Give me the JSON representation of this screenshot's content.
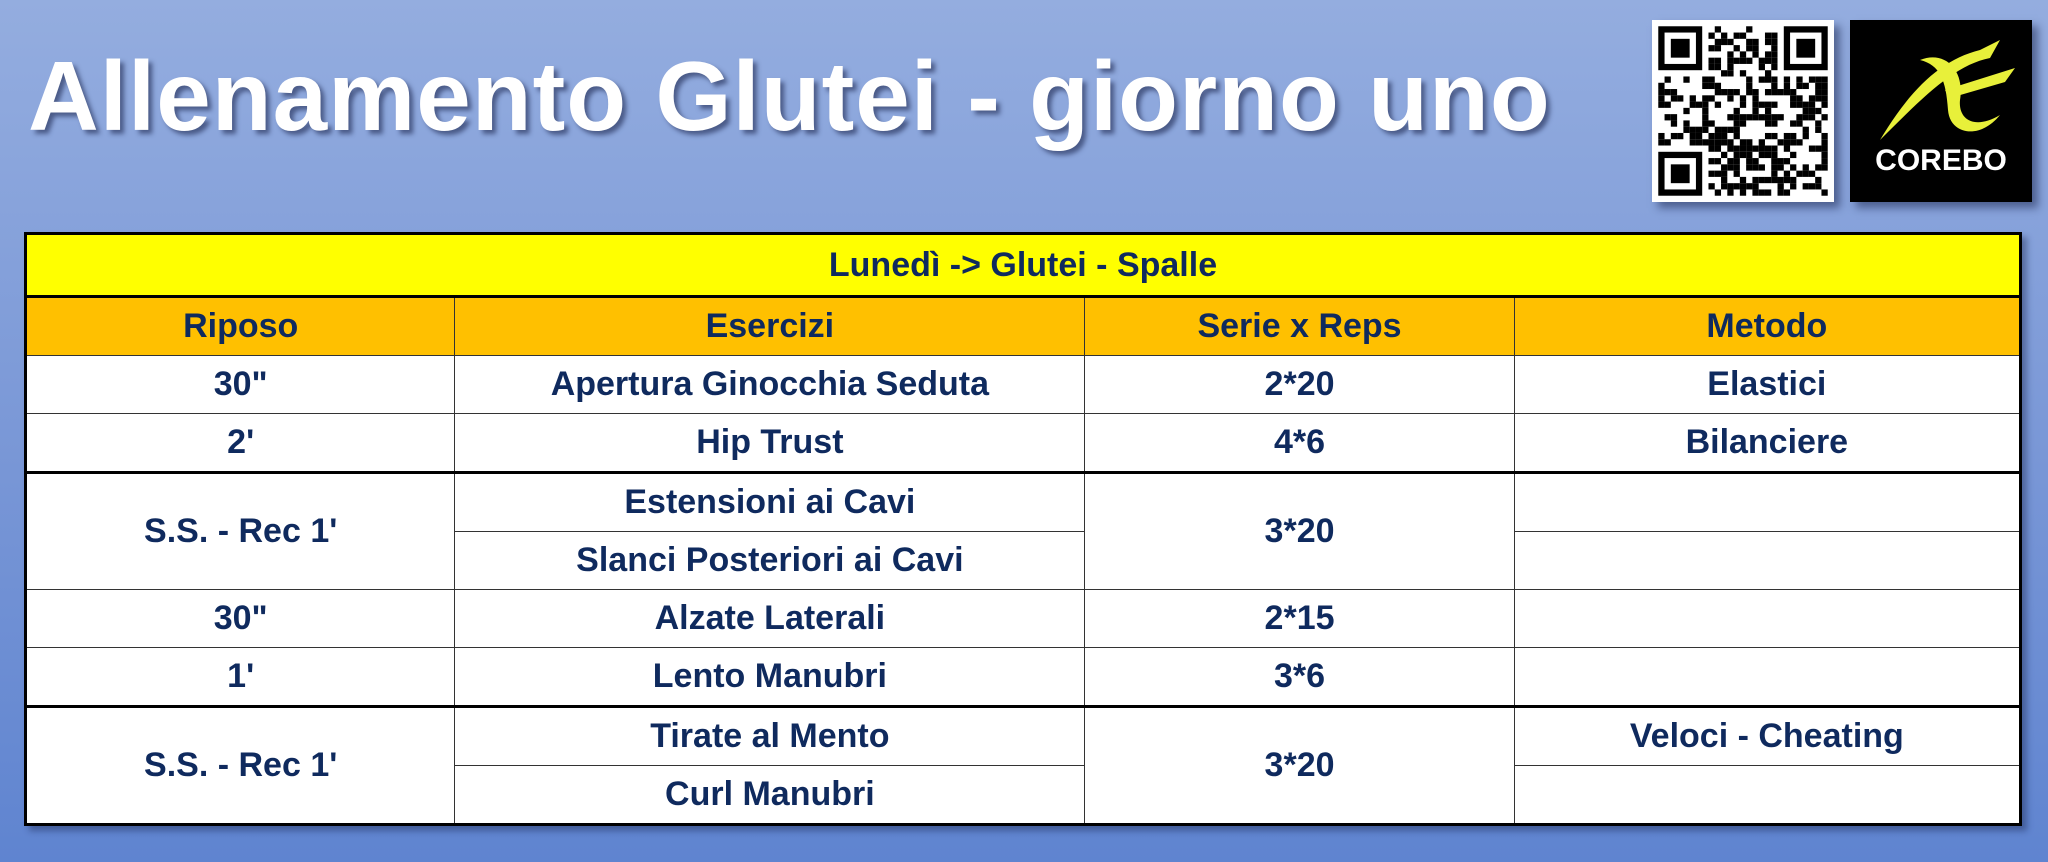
{
  "title": "Allenamento Glutei - giorno uno",
  "logo": {
    "brand": "COREBO",
    "accent_color": "#e8f03a"
  },
  "qr_code": {
    "icon": "qr-code"
  },
  "table": {
    "day_header": "Lunedì -> Glutei - Spalle",
    "columns": [
      "Riposo",
      "Esercizi",
      "Serie x Reps",
      "Metodo"
    ],
    "rows": [
      {
        "riposo": "30\"",
        "esercizio": "Apertura Ginocchia Seduta",
        "serie": "2*20",
        "metodo": "Elastici"
      },
      {
        "riposo": "2'",
        "esercizio": "Hip Trust",
        "serie": "4*6",
        "metodo": "Bilanciere"
      },
      {
        "riposo": "S.S. - Rec 1'",
        "esercizio": "Estensioni ai Cavi",
        "serie": "3*20",
        "metodo": ""
      },
      {
        "esercizio": "Slanci Posteriori ai Cavi",
        "metodo": ""
      },
      {
        "riposo": "30\"",
        "esercizio": "Alzate Laterali",
        "serie": "2*15",
        "metodo": ""
      },
      {
        "riposo": "1'",
        "esercizio": "Lento Manubri",
        "serie": "3*6",
        "metodo": ""
      },
      {
        "riposo": "S.S. - Rec 1'",
        "esercizio": "Tirate al Mento",
        "serie": "3*20",
        "metodo": "Veloci - Cheating"
      },
      {
        "esercizio": "Curl Manubri",
        "metodo": ""
      }
    ]
  },
  "colors": {
    "day_header_bg": "#ffff00",
    "column_header_bg": "#ffc000",
    "text": "#0f2a5e"
  }
}
